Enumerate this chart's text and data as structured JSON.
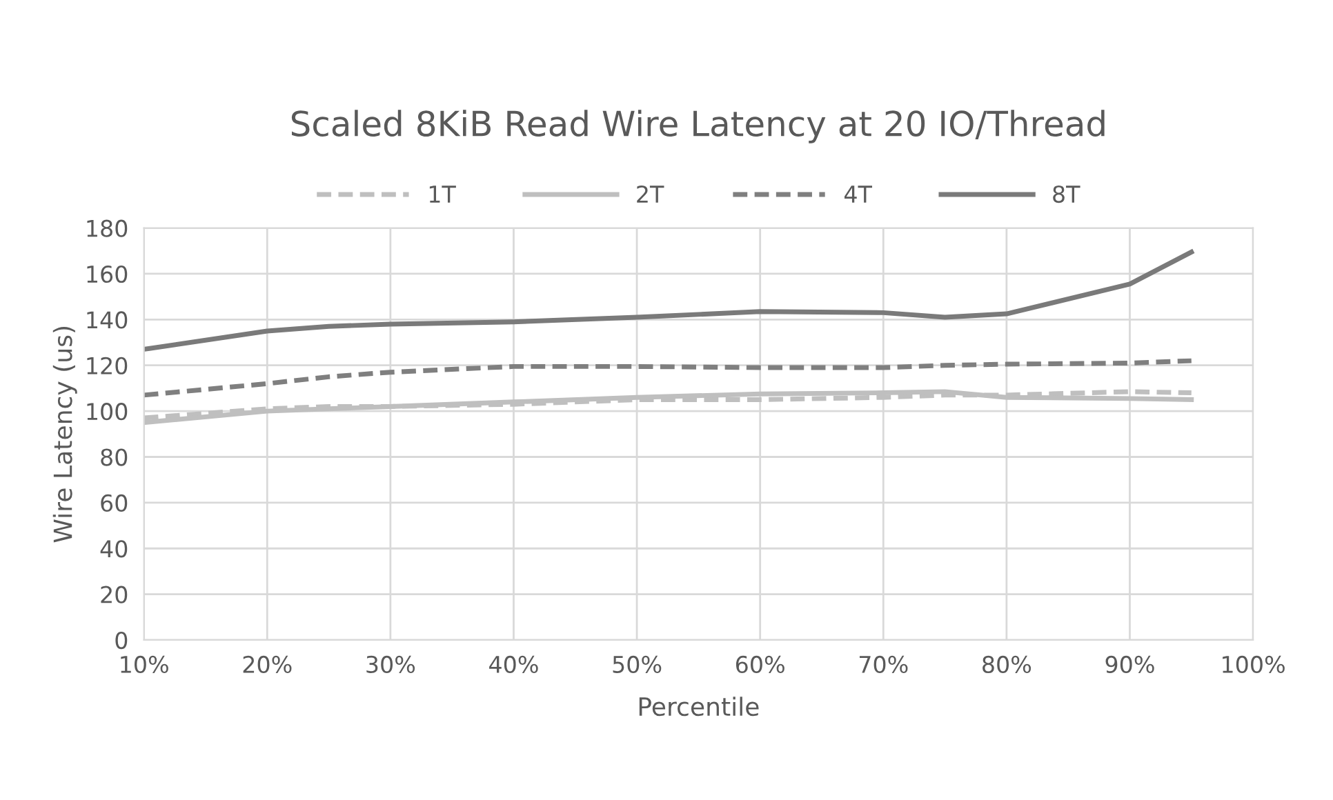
{
  "chart_data": {
    "type": "line",
    "title": "Scaled 8KiB Read Wire Latency at 20 IO/Thread",
    "xlabel": "Percentile",
    "ylabel": "Wire Latency (us)",
    "x": [
      10,
      20,
      25,
      30,
      40,
      50,
      60,
      70,
      75,
      80,
      90,
      95
    ],
    "series": [
      {
        "name": "1T",
        "color": "#bfbfbf",
        "line_style": "dashed",
        "values": [
          97,
          101,
          102,
          102,
          103,
          105,
          105,
          106,
          107,
          107,
          108.5,
          108
        ]
      },
      {
        "name": "2T",
        "color": "#bfbfbf",
        "line_style": "solid",
        "values": [
          95,
          100,
          101,
          102,
          104,
          106,
          107.5,
          108,
          108.5,
          106,
          105.5,
          105
        ]
      },
      {
        "name": "4T",
        "color": "#7f7f7f",
        "line_style": "dashed",
        "values": [
          107,
          112,
          115,
          117,
          119.5,
          119.5,
          119,
          119,
          120,
          120.5,
          121,
          122
        ]
      },
      {
        "name": "8T",
        "color": "#7a7a7a",
        "line_style": "solid",
        "values": [
          127,
          135,
          137,
          138,
          139,
          141,
          143.5,
          143,
          141,
          142.5,
          155.5,
          169.5
        ]
      }
    ],
    "xlim": [
      10,
      100
    ],
    "ylim": [
      0,
      180
    ],
    "xticks": [
      {
        "value": 10,
        "label": "10%"
      },
      {
        "value": 20,
        "label": "20%"
      },
      {
        "value": 30,
        "label": "30%"
      },
      {
        "value": 40,
        "label": "40%"
      },
      {
        "value": 50,
        "label": "50%"
      },
      {
        "value": 60,
        "label": "60%"
      },
      {
        "value": 70,
        "label": "70%"
      },
      {
        "value": 80,
        "label": "80%"
      },
      {
        "value": 90,
        "label": "90%"
      },
      {
        "value": 100,
        "label": "100%"
      }
    ],
    "yticks": [
      0,
      20,
      40,
      60,
      80,
      100,
      120,
      140,
      160,
      180
    ],
    "grid": true,
    "legend": "top",
    "marker": "none"
  }
}
